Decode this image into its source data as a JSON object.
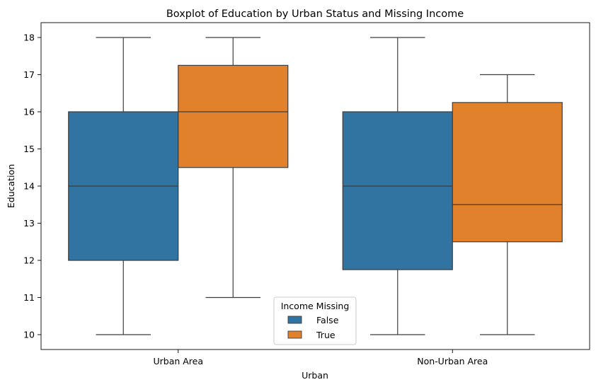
{
  "chart_data": {
    "type": "boxplot",
    "title": "Boxplot of Education by Urban Status and Missing Income",
    "xlabel": "Urban",
    "ylabel": "Education",
    "categories": [
      "Urban Area",
      "Non-Urban Area"
    ],
    "ylim": [
      9.6,
      18.4
    ],
    "yticks": [
      10,
      11,
      12,
      13,
      14,
      15,
      16,
      17,
      18
    ],
    "grid": false,
    "legend": {
      "title": "Income Missing",
      "placement": "bottom-center",
      "entries": [
        "False",
        "True"
      ]
    },
    "series": [
      {
        "name": "False",
        "color": "#3274a1",
        "boxes": [
          {
            "category": "Urban Area",
            "whisker_low": 10,
            "q1": 12,
            "median": 14,
            "q3": 16,
            "whisker_high": 18
          },
          {
            "category": "Non-Urban Area",
            "whisker_low": 10,
            "q1": 11.75,
            "median": 14,
            "q3": 16,
            "whisker_high": 18
          }
        ]
      },
      {
        "name": "True",
        "color": "#e1812c",
        "boxes": [
          {
            "category": "Urban Area",
            "whisker_low": 11,
            "q1": 14.5,
            "median": 16,
            "q3": 17.25,
            "whisker_high": 18
          },
          {
            "category": "Non-Urban Area",
            "whisker_low": 10,
            "q1": 12.5,
            "median": 13.5,
            "q3": 16.25,
            "whisker_high": 17
          }
        ]
      }
    ]
  }
}
